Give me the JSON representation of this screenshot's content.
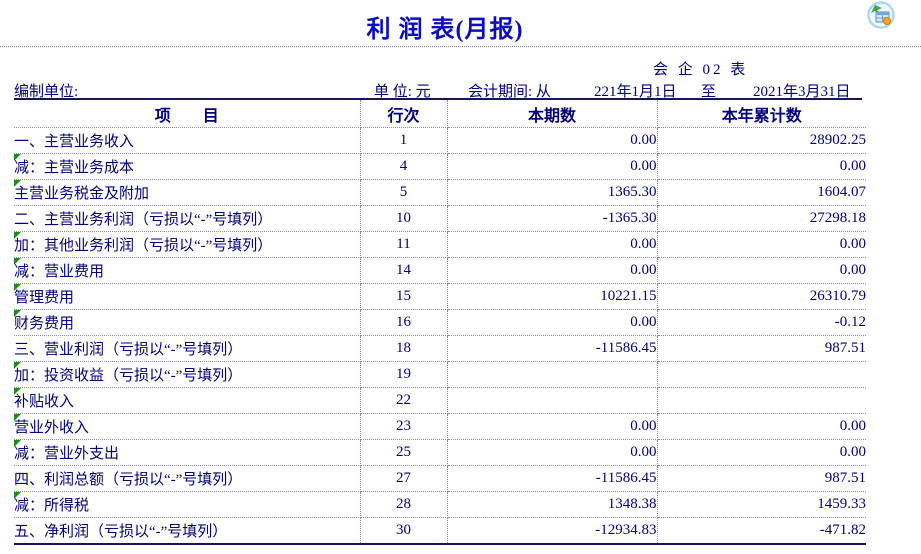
{
  "header": {
    "title": "利 润 表(月报)",
    "form_code": "会 企 02 表",
    "prepared_by_label": "编制单位:",
    "unit_label": "单 位: 元",
    "period_label": "会计期间: 从",
    "period_start": "221年1月1日",
    "period_to": "至",
    "period_end": "2021年3月31日"
  },
  "icons": {
    "app_icon": "report-icon",
    "row_flag": "comment-flag-icon"
  },
  "colors": {
    "title_blue": "#0b0bc4",
    "text_navy": "#00007b",
    "flag_green": "#1f8a1f",
    "rule_navy": "#15155e"
  },
  "table": {
    "columns": [
      "项　　目",
      "行次",
      "本期数",
      "本年累计数"
    ],
    "rows": [
      {
        "label": "一、主营业务收入",
        "indent": 0,
        "line": "1",
        "current": "0.00",
        "ytd": "28902.25",
        "flag": false
      },
      {
        "label": "减：主营业务成本",
        "indent": 1,
        "line": "4",
        "current": "0.00",
        "ytd": "0.00",
        "flag": true
      },
      {
        "label": "主营业务税金及附加",
        "indent": 1,
        "line": "5",
        "current": "1365.30",
        "ytd": "1604.07",
        "flag": true
      },
      {
        "label": "二、主营业务利润（亏损以“-”号填列）",
        "indent": 0,
        "line": "10",
        "current": "-1365.30",
        "ytd": "27298.18",
        "flag": false
      },
      {
        "label": "加：其他业务利润（亏损以“-”号填列）",
        "indent": 1,
        "line": "11",
        "current": "0.00",
        "ytd": "0.00",
        "flag": true
      },
      {
        "label": "减：营业费用",
        "indent": 1,
        "line": "14",
        "current": "0.00",
        "ytd": "0.00",
        "flag": true
      },
      {
        "label": "管理费用",
        "indent": 2,
        "line": "15",
        "current": "10221.15",
        "ytd": "26310.79",
        "flag": true
      },
      {
        "label": "财务费用",
        "indent": 2,
        "line": "16",
        "current": "0.00",
        "ytd": "-0.12",
        "flag": true
      },
      {
        "label": "三、营业利润（亏损以“-”号填列）",
        "indent": 0,
        "line": "18",
        "current": "-11586.45",
        "ytd": "987.51",
        "flag": false
      },
      {
        "label": "加：投资收益（亏损以“-”号填列）",
        "indent": 1,
        "line": "19",
        "current": "",
        "ytd": "",
        "flag": true
      },
      {
        "label": "补贴收入",
        "indent": 2,
        "line": "22",
        "current": "",
        "ytd": "",
        "flag": true
      },
      {
        "label": "营业外收入",
        "indent": 2,
        "line": "23",
        "current": "0.00",
        "ytd": "0.00",
        "flag": true
      },
      {
        "label": "减：营业外支出",
        "indent": 1,
        "line": "25",
        "current": "0.00",
        "ytd": "0.00",
        "flag": true
      },
      {
        "label": "四、利润总额（亏损以“-”号填列）",
        "indent": 0,
        "line": "27",
        "current": "-11586.45",
        "ytd": "987.51",
        "flag": false
      },
      {
        "label": "减：所得税",
        "indent": 1,
        "line": "28",
        "current": "1348.38",
        "ytd": "1459.33",
        "flag": true
      },
      {
        "label": "五、净利润（亏损以“-”号填列）",
        "indent": 0,
        "line": "30",
        "current": "-12934.83",
        "ytd": "-471.82",
        "flag": false
      }
    ]
  }
}
